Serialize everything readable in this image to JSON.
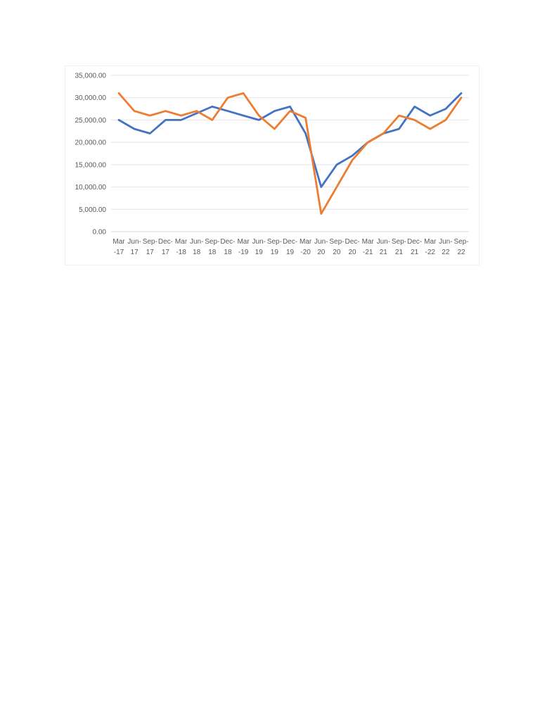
{
  "chart_data": {
    "type": "line",
    "categories": [
      [
        "Mar",
        "-17"
      ],
      [
        "Jun-",
        "17"
      ],
      [
        "Sep-",
        "17"
      ],
      [
        "Dec-",
        "17"
      ],
      [
        "Mar",
        "-18"
      ],
      [
        "Jun-",
        "18"
      ],
      [
        "Sep-",
        "18"
      ],
      [
        "Dec-",
        "18"
      ],
      [
        "Mar",
        "-19"
      ],
      [
        "Jun-",
        "19"
      ],
      [
        "Sep-",
        "19"
      ],
      [
        "Dec-",
        "19"
      ],
      [
        "Mar",
        "-20"
      ],
      [
        "Jun-",
        "20"
      ],
      [
        "Sep-",
        "20"
      ],
      [
        "Dec-",
        "20"
      ],
      [
        "Mar",
        "-21"
      ],
      [
        "Jun-",
        "21"
      ],
      [
        "Sep-",
        "21"
      ],
      [
        "Dec-",
        "21"
      ],
      [
        "Mar",
        "-22"
      ],
      [
        "Jun-",
        "22"
      ],
      [
        "Sep-",
        "22"
      ]
    ],
    "y_ticks": [
      "0.00",
      "5,000.00",
      "10,000.00",
      "15,000.00",
      "20,000.00",
      "25,000.00",
      "30,000.00",
      "35,000.00"
    ],
    "ylim": [
      0,
      35000
    ],
    "grid": true,
    "series": [
      {
        "color": "#4472c4",
        "values": [
          25000,
          23000,
          22000,
          25000,
          25000,
          26500,
          28000,
          27000,
          26000,
          25000,
          27000,
          28000,
          22000,
          10000,
          15000,
          17000,
          20000,
          22000,
          23000,
          28000,
          26000,
          27500,
          31000
        ]
      },
      {
        "color": "#ed7d31",
        "values": [
          31000,
          27000,
          26000,
          27000,
          26000,
          27000,
          25000,
          30000,
          31000,
          26000,
          23000,
          27000,
          25500,
          4000,
          10000,
          16000,
          20000,
          22000,
          26000,
          25000,
          23000,
          25000,
          30000
        ]
      }
    ]
  }
}
